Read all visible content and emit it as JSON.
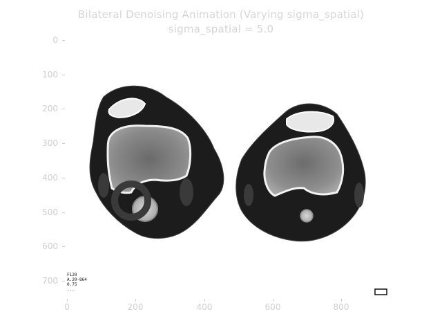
{
  "figure": {
    "title": "Bilateral Denoising Animation (Varying sigma_spatial)",
    "subtitle": "sigma_spatial = 5.0",
    "y_ticks": [
      "0",
      "100",
      "200",
      "300",
      "400",
      "500",
      "600",
      "700"
    ],
    "x_ticks": [
      "0",
      "200",
      "400",
      "600",
      "800"
    ],
    "overlay_lines": [
      "F120",
      "A.20-864",
      "0.75",
      "..."
    ]
  },
  "colors": {
    "background": "#ffffff",
    "text": "#d6d6d6",
    "scan_dark": "#1a1a1a",
    "bone": "#e9e9e9"
  }
}
